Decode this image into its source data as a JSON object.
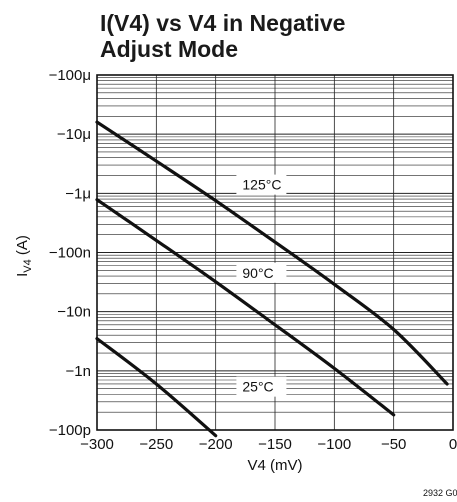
{
  "chart_data": {
    "type": "line",
    "title_lines": [
      "I(V4) vs V4 in Negative",
      "Adjust Mode"
    ],
    "xlabel": "V4 (mV)",
    "ylabel_main": "I",
    "ylabel_sub": "V4",
    "ylabel_unit": " (A)",
    "xlim": [
      -300,
      0
    ],
    "ylim": [
      -1e-10,
      -0.0001
    ],
    "y_scale": "log",
    "grid": true,
    "x_ticks": [
      -300,
      -250,
      -200,
      -150,
      -100,
      -50,
      0
    ],
    "x_tick_labels": [
      "−300",
      "−250",
      "−200",
      "−150",
      "−100",
      "−50",
      "0"
    ],
    "y_ticks": [
      -1e-10,
      -1e-09,
      -1e-08,
      -1e-07,
      -1e-06,
      -1e-05,
      -0.0001
    ],
    "y_tick_labels": [
      "−100p",
      "−1n",
      "−10n",
      "−100n",
      "−1μ",
      "−10μ",
      "−100μ"
    ],
    "series": [
      {
        "name": "125°C",
        "x": [
          -300,
          -250,
          -200,
          -150,
          -100,
          -50,
          -5
        ],
        "y": [
          -1.6e-05,
          -3.5e-06,
          -7.5e-07,
          -1.5e-07,
          -2.9e-08,
          -5e-09,
          -6e-10
        ]
      },
      {
        "name": "90°C",
        "x": [
          -300,
          -250,
          -200,
          -150,
          -100,
          -50
        ],
        "y": [
          -7.8e-07,
          -1.6e-07,
          -3.2e-08,
          -6e-09,
          -1.1e-09,
          -1.8e-10
        ]
      },
      {
        "name": "25°C",
        "x": [
          -300,
          -250,
          -200
        ],
        "y": [
          -3.5e-09,
          -6e-10,
          -8e-11
        ]
      }
    ],
    "figure_id": "2932 G05"
  }
}
